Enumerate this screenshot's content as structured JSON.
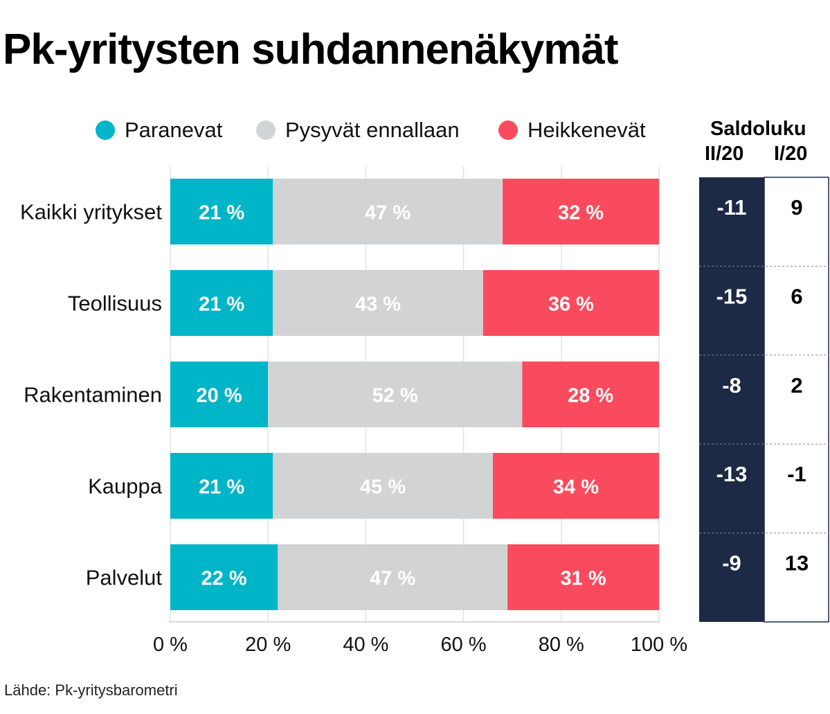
{
  "title": "Pk-yritysten suhdannenäkymät",
  "source": "Lähde: Pk-yritysbarometri",
  "legend": [
    {
      "label": "Paranevat",
      "color": "#00b5c8"
    },
    {
      "label": "Pysyvät ennallaan",
      "color": "#d1d3d5"
    },
    {
      "label": "Heikkenevät",
      "color": "#fa4b5e"
    }
  ],
  "saldo": {
    "title": "Saldoluku",
    "col1": "II/20",
    "col2": "I/20",
    "dark_color": "#1c2a45"
  },
  "chart_data": {
    "type": "bar",
    "orientation": "horizontal",
    "stacked": true,
    "categories": [
      "Kaikki yritykset",
      "Teollisuus",
      "Rakentaminen",
      "Kauppa",
      "Palvelut"
    ],
    "series": [
      {
        "name": "Paranevat",
        "values": [
          21,
          21,
          20,
          21,
          22
        ],
        "color": "#00b5c8"
      },
      {
        "name": "Pysyvät ennallaan",
        "values": [
          47,
          43,
          52,
          45,
          47
        ],
        "color": "#d1d3d5"
      },
      {
        "name": "Heikkenevät",
        "values": [
          32,
          36,
          28,
          34,
          31
        ],
        "color": "#fa4b5e"
      }
    ],
    "value_suffix": " %",
    "xlim": [
      0,
      100
    ],
    "xticks": [
      0,
      20,
      40,
      60,
      80,
      100
    ],
    "xtick_labels": [
      "0 %",
      "20 %",
      "40 %",
      "60 %",
      "80 %",
      "100 %"
    ],
    "grid": true,
    "saldo_ii20": [
      -11,
      -15,
      -8,
      -13,
      -9
    ],
    "saldo_i20": [
      9,
      6,
      2,
      -1,
      13
    ]
  }
}
